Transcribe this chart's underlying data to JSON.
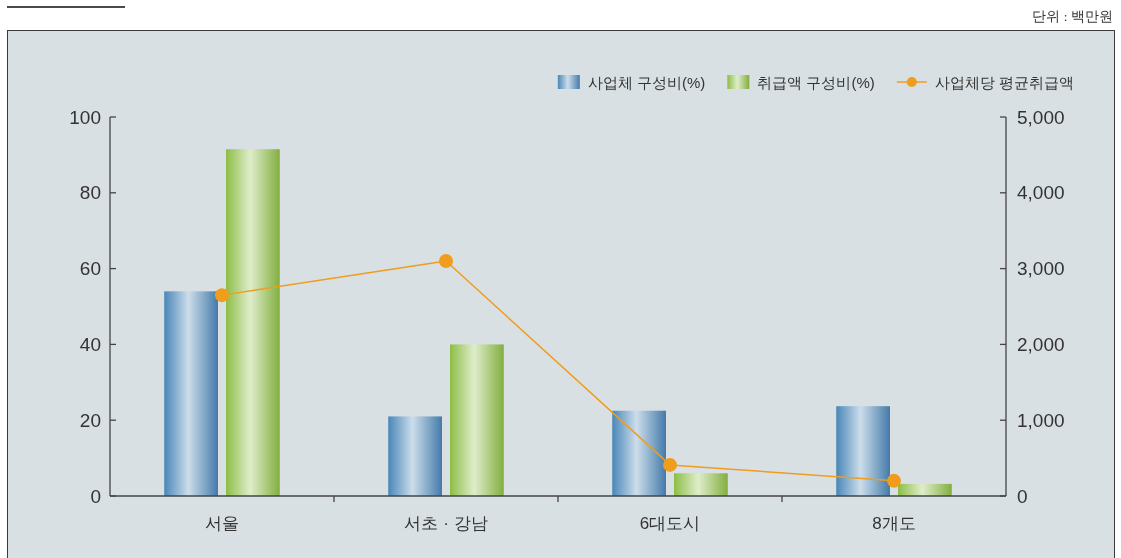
{
  "chart_data": {
    "type": "bar",
    "annotations": [
      "단위 : 백만원"
    ],
    "categories": [
      "서울",
      "서초 · 강남",
      "6대도시",
      "8개도"
    ],
    "series": [
      {
        "name": "사업체 구성비(%)",
        "color": "#4a86b8",
        "values": [
          54,
          21,
          22.5,
          23.7
        ]
      },
      {
        "name": "취급액 구성비(%)",
        "color": "#8dbd45",
        "values": [
          91.5,
          40,
          6,
          3.2
        ]
      },
      {
        "name": "사업체당 평균취급액",
        "type": "line",
        "axis": "y2",
        "color": "#f09c1c",
        "values": [
          2650,
          3100,
          410,
          200
        ]
      }
    ],
    "ylim": [
      0,
      100
    ],
    "yticks": [
      0,
      20,
      40,
      60,
      80,
      100
    ],
    "y2lim": [
      0,
      5000
    ],
    "y2ticks": [
      0,
      {
        "value": 1000,
        "label": "1,000"
      },
      {
        "value": 2000,
        "label": "2,000"
      },
      {
        "value": 3000,
        "label": "3,000"
      },
      {
        "value": 4000,
        "label": "4,000"
      },
      {
        "value": 5000,
        "label": "5,000"
      }
    ],
    "marker": "circle",
    "line_style": "solid",
    "legend": "top right"
  }
}
